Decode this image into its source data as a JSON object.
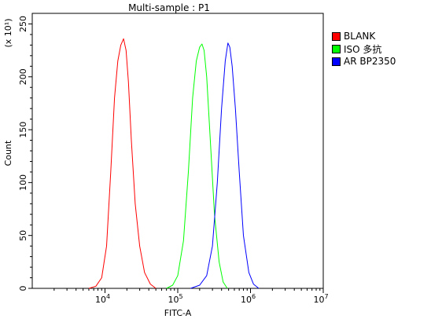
{
  "chart_data": {
    "type": "line",
    "title": "Multi-sample : P1",
    "xlabel": "FITC-A",
    "ylabel": "Count",
    "y_multiplier_label": "(x 10¹)",
    "x_scale": "log",
    "xlim": [
      1000,
      10000000
    ],
    "ylim": [
      0,
      260
    ],
    "x_ticks": [
      {
        "value": 10000,
        "base": "10",
        "exp": "4"
      },
      {
        "value": 100000,
        "base": "10",
        "exp": "5"
      },
      {
        "value": 1000000,
        "base": "10",
        "exp": "6"
      },
      {
        "value": 10000000,
        "base": "10",
        "exp": "7"
      }
    ],
    "y_ticks": [
      "0",
      "50",
      "100",
      "150",
      "200",
      "250"
    ],
    "legend_position": "right",
    "series": [
      {
        "name": "BLANK",
        "color": "#ff0000",
        "x": [
          6000,
          7500,
          9000,
          10500,
          12000,
          13500,
          15000,
          16500,
          18000,
          19500,
          21000,
          23000,
          26000,
          30000,
          35000,
          42000,
          50000
        ],
        "y": [
          0,
          2,
          10,
          40,
          110,
          180,
          215,
          230,
          236,
          225,
          195,
          140,
          80,
          40,
          15,
          4,
          0
        ]
      },
      {
        "name": "ISO 多抗",
        "color": "#00ff00",
        "x": [
          70000,
          85000,
          100000,
          120000,
          140000,
          160000,
          180000,
          200000,
          215000,
          230000,
          250000,
          280000,
          320000,
          370000,
          420000,
          480000
        ],
        "y": [
          0,
          3,
          12,
          45,
          110,
          180,
          215,
          228,
          231,
          225,
          200,
          140,
          70,
          25,
          6,
          0
        ]
      },
      {
        "name": "AR BP2350",
        "color": "#0000ff",
        "x": [
          150000,
          200000,
          250000,
          300000,
          350000,
          400000,
          450000,
          490000,
          520000,
          560000,
          620000,
          700000,
          800000,
          950000,
          1100000,
          1300000
        ],
        "y": [
          0,
          3,
          12,
          40,
          100,
          170,
          215,
          232,
          228,
          210,
          170,
          110,
          50,
          15,
          4,
          0
        ]
      }
    ]
  }
}
